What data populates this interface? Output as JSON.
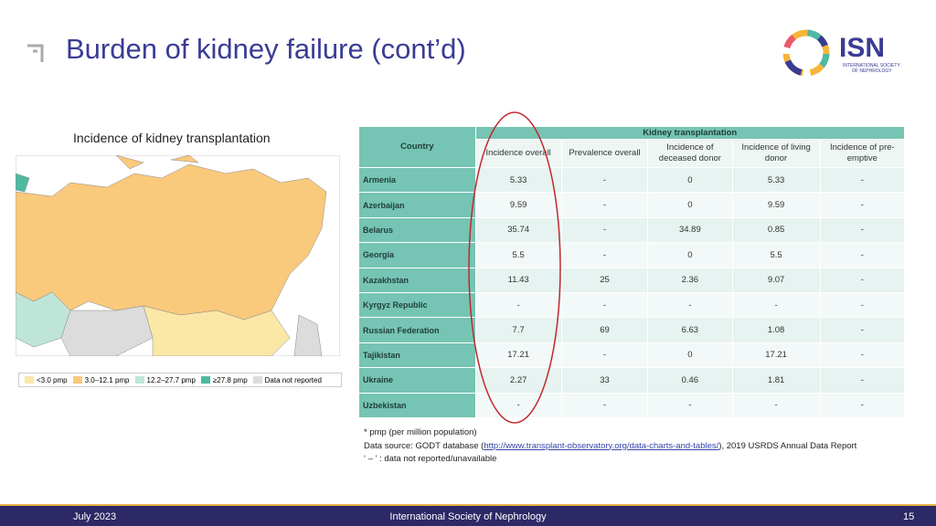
{
  "header": {
    "title": "Burden of kidney failure (cont’d)",
    "logo": {
      "name": "ISN",
      "subtitle": [
        "INTERNATIONAL SOCIETY",
        "OF NEPHROLOGY"
      ]
    }
  },
  "map": {
    "title": "Incidence of kidney transplantation",
    "legend": [
      {
        "label": "<3.0 pmp",
        "color": "#fbe7a6"
      },
      {
        "label": "3.0–12.1 pmp",
        "color": "#f9c97c"
      },
      {
        "label": "12.2–27.7 pmp",
        "color": "#bfe5d9"
      },
      {
        "label": "≥27.8 pmp",
        "color": "#4fb9a1"
      },
      {
        "label": "Data not reported",
        "color": "#dcdcdc"
      }
    ]
  },
  "table": {
    "group_header": "Kidney transplantation",
    "columns": [
      "Country",
      "Incidence overall",
      "Prevalence overall",
      "Incidence of deceased donor",
      "Incidence of living donor",
      "Incidence of pre-emptive"
    ],
    "rows": [
      [
        "Armenia",
        "5.33",
        "-",
        "0",
        "5.33",
        "-"
      ],
      [
        "Azerbaijan",
        "9.59",
        "-",
        "0",
        "9.59",
        "-"
      ],
      [
        "Belarus",
        "35.74",
        "-",
        "34.89",
        "0.85",
        "-"
      ],
      [
        "Georgia",
        "5.5",
        "-",
        "0",
        "5.5",
        "-"
      ],
      [
        "Kazakhstan",
        "11.43",
        "25",
        "2.36",
        "9.07",
        "-"
      ],
      [
        "Kyrgyz Republic",
        "-",
        "-",
        "-",
        "-",
        "-"
      ],
      [
        "Russian Federation",
        "7.7",
        "69",
        "6.63",
        "1.08",
        "-"
      ],
      [
        "Tajikistan",
        "17.21",
        "-",
        "0",
        "17.21",
        "-"
      ],
      [
        "Ukraine",
        "2.27",
        "33",
        "0.46",
        "1.81",
        "-"
      ],
      [
        "Uzbekistan",
        "-",
        "-",
        "-",
        "-",
        "-"
      ]
    ]
  },
  "notes": {
    "pmp": "* pmp (per million population)",
    "source_prefix": "Data source: GODT database (",
    "source_link": "http://www.transplant-observatory.org/data-charts-and-tables/",
    "source_suffix": "), 2019 USRDS Annual Data Report",
    "dash": "‘ – ’ : data not reported/unavailable"
  },
  "footer": {
    "date": "July 2023",
    "org": "International Society of Nephrology",
    "page": "15"
  }
}
